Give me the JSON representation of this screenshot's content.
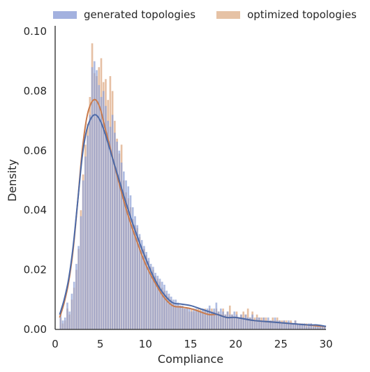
{
  "chart_data": {
    "type": "histogram",
    "xlabel": "Compliance",
    "ylabel": "Density",
    "xlim": [
      0,
      30
    ],
    "ylim": [
      0,
      0.1
    ],
    "xticks": [
      0,
      5,
      10,
      15,
      20,
      25,
      30
    ],
    "yticks": [
      0.0,
      0.02,
      0.04,
      0.06,
      0.08,
      0.1
    ],
    "ytick_labels": [
      "0.00",
      "0.02",
      "0.04",
      "0.06",
      "0.08",
      "0.10"
    ],
    "grid": false,
    "legend_position": "top",
    "bins": {
      "start": 0.5,
      "width": 0.25,
      "count": 118
    },
    "series": [
      {
        "name": "generated topologies",
        "color": "#8c9fd6",
        "line_color": "#4c6aa8",
        "hist": [
          0.005,
          0.003,
          0.004,
          0.009,
          0.006,
          0.012,
          0.016,
          0.022,
          0.028,
          0.038,
          0.05,
          0.058,
          0.065,
          0.072,
          0.088,
          0.09,
          0.087,
          0.082,
          0.078,
          0.08,
          0.075,
          0.07,
          0.068,
          0.072,
          0.066,
          0.063,
          0.06,
          0.056,
          0.053,
          0.05,
          0.048,
          0.045,
          0.041,
          0.038,
          0.035,
          0.032,
          0.03,
          0.028,
          0.026,
          0.024,
          0.022,
          0.021,
          0.019,
          0.018,
          0.017,
          0.016,
          0.015,
          0.013,
          0.012,
          0.011,
          0.01,
          0.01,
          0.009,
          0.008,
          0.008,
          0.007,
          0.007,
          0.007,
          0.006,
          0.007,
          0.007,
          0.006,
          0.006,
          0.007,
          0.006,
          0.007,
          0.008,
          0.006,
          0.007,
          0.009,
          0.006,
          0.007,
          0.006,
          0.005,
          0.006,
          0.005,
          0.005,
          0.006,
          0.005,
          0.004,
          0.005,
          0.004,
          0.005,
          0.004,
          0.004,
          0.005,
          0.003,
          0.004,
          0.004,
          0.003,
          0.004,
          0.003,
          0.004,
          0.003,
          0.003,
          0.004,
          0.003,
          0.003,
          0.002,
          0.003,
          0.002,
          0.003,
          0.002,
          0.002,
          0.003,
          0.002,
          0.002,
          0.002,
          0.002,
          0.001,
          0.002,
          0.002,
          0.001,
          0.001,
          0.001,
          0.001,
          0.001,
          0.001
        ],
        "kde": [
          [
            0.5,
            0.005
          ],
          [
            1,
            0.01
          ],
          [
            1.5,
            0.017
          ],
          [
            2,
            0.028
          ],
          [
            2.5,
            0.043
          ],
          [
            3,
            0.058
          ],
          [
            3.5,
            0.067
          ],
          [
            4,
            0.071
          ],
          [
            4.5,
            0.072
          ],
          [
            5,
            0.07
          ],
          [
            5.5,
            0.066
          ],
          [
            6,
            0.061
          ],
          [
            7,
            0.051
          ],
          [
            8,
            0.041
          ],
          [
            9,
            0.032
          ],
          [
            10,
            0.024
          ],
          [
            11,
            0.017
          ],
          [
            12,
            0.012
          ],
          [
            13,
            0.009
          ],
          [
            14,
            0.0085
          ],
          [
            15,
            0.008
          ],
          [
            16,
            0.007
          ],
          [
            17,
            0.006
          ],
          [
            18,
            0.005
          ],
          [
            19,
            0.004
          ],
          [
            20,
            0.004
          ],
          [
            22,
            0.003
          ],
          [
            24,
            0.0025
          ],
          [
            26,
            0.002
          ],
          [
            28,
            0.0015
          ],
          [
            29,
            0.0015
          ],
          [
            30,
            0.001
          ]
        ]
      },
      {
        "name": "optimized topologies",
        "color": "#ddab85",
        "line_color": "#c97b4d",
        "hist": [
          0.004,
          0.002,
          0.003,
          0.007,
          0.005,
          0.01,
          0.014,
          0.02,
          0.027,
          0.04,
          0.052,
          0.062,
          0.069,
          0.078,
          0.096,
          0.086,
          0.085,
          0.088,
          0.091,
          0.083,
          0.084,
          0.077,
          0.085,
          0.08,
          0.07,
          0.064,
          0.059,
          0.062,
          0.05,
          0.046,
          0.044,
          0.041,
          0.037,
          0.035,
          0.034,
          0.031,
          0.028,
          0.027,
          0.025,
          0.023,
          0.021,
          0.02,
          0.018,
          0.017,
          0.016,
          0.014,
          0.013,
          0.012,
          0.011,
          0.01,
          0.009,
          0.008,
          0.008,
          0.008,
          0.007,
          0.007,
          0.007,
          0.006,
          0.007,
          0.006,
          0.006,
          0.007,
          0.007,
          0.006,
          0.007,
          0.006,
          0.007,
          0.007,
          0.006,
          0.007,
          0.006,
          0.005,
          0.007,
          0.005,
          0.006,
          0.008,
          0.005,
          0.004,
          0.006,
          0.004,
          0.005,
          0.006,
          0.005,
          0.007,
          0.004,
          0.006,
          0.004,
          0.005,
          0.004,
          0.004,
          0.004,
          0.004,
          0.003,
          0.003,
          0.004,
          0.003,
          0.004,
          0.003,
          0.003,
          0.003,
          0.003,
          0.002,
          0.003,
          0.002,
          0.003,
          0.002,
          0.002,
          0.002,
          0.002,
          0.002,
          0.001,
          0.002,
          0.001,
          0.001,
          0.001,
          0.001,
          0.001,
          0.001
        ],
        "kde": [
          [
            0.5,
            0.004
          ],
          [
            1,
            0.009
          ],
          [
            1.5,
            0.016
          ],
          [
            2,
            0.027
          ],
          [
            2.5,
            0.043
          ],
          [
            3,
            0.06
          ],
          [
            3.5,
            0.071
          ],
          [
            4,
            0.076
          ],
          [
            4.5,
            0.077
          ],
          [
            5,
            0.074
          ],
          [
            5.5,
            0.068
          ],
          [
            6,
            0.062
          ],
          [
            7,
            0.05
          ],
          [
            8,
            0.039
          ],
          [
            9,
            0.03
          ],
          [
            10,
            0.022
          ],
          [
            11,
            0.016
          ],
          [
            12,
            0.011
          ],
          [
            13,
            0.008
          ],
          [
            14,
            0.0075
          ],
          [
            15,
            0.007
          ],
          [
            16,
            0.006
          ],
          [
            17,
            0.005
          ],
          [
            18,
            0.005
          ],
          [
            19,
            0.004
          ],
          [
            20,
            0.004
          ],
          [
            22,
            0.003
          ],
          [
            24,
            0.0025
          ],
          [
            26,
            0.002
          ],
          [
            28,
            0.0015
          ],
          [
            29,
            0.0012
          ],
          [
            30,
            0.001
          ]
        ]
      }
    ]
  }
}
